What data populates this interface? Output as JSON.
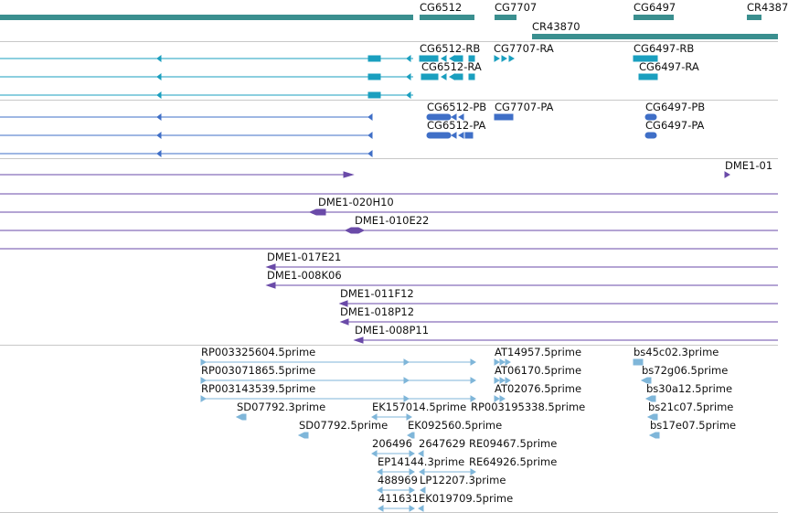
{
  "colors": {
    "gene": "#3a8f8f",
    "transcript": "#1a9fbf",
    "protein": "#3f6fc7",
    "clone": "#6a4aa8",
    "est": "#7fb6d9"
  },
  "genes": [
    "CG6512",
    "CG7707",
    "CG6497",
    "CR4387",
    "CR43870"
  ],
  "transcripts": [
    "CG6512-RB",
    "CG7707-RA",
    "CG6497-RB",
    "CG6512-RA",
    "CG6497-RA"
  ],
  "proteins": [
    "CG6512-PB",
    "CG7707-PA",
    "CG6497-PB",
    "CG6512-PA",
    "CG6497-PA"
  ],
  "clones": [
    "DME1-01",
    "DME1-020H10",
    "DME1-010E22",
    "DME1-017E21",
    "DME1-008K06",
    "DME1-011F12",
    "DME1-018P12",
    "DME1-008P11"
  ],
  "ests": [
    "RP003325604.5prime",
    "AT14957.5prime",
    "bs45c02.3prime",
    "RP003071865.5prime",
    "AT06170.5prime",
    "bs72g06.5prime",
    "RP003143539.5prime",
    "AT02076.5prime",
    "bs30a12.5prime",
    "SD07792.3prime",
    "EK157014.5prime",
    "RP003195338.5prime",
    "bs21c07.5prime",
    "SD07792.5prime",
    "EK092560.5prime",
    "bs17e07.5prime",
    "206496",
    "2647629",
    "RE09467.5prime",
    "EP14144.3prime",
    "RE64926.5prime",
    "488969",
    "LP12207.3prime",
    "411631",
    "EK019709.5prime"
  ]
}
